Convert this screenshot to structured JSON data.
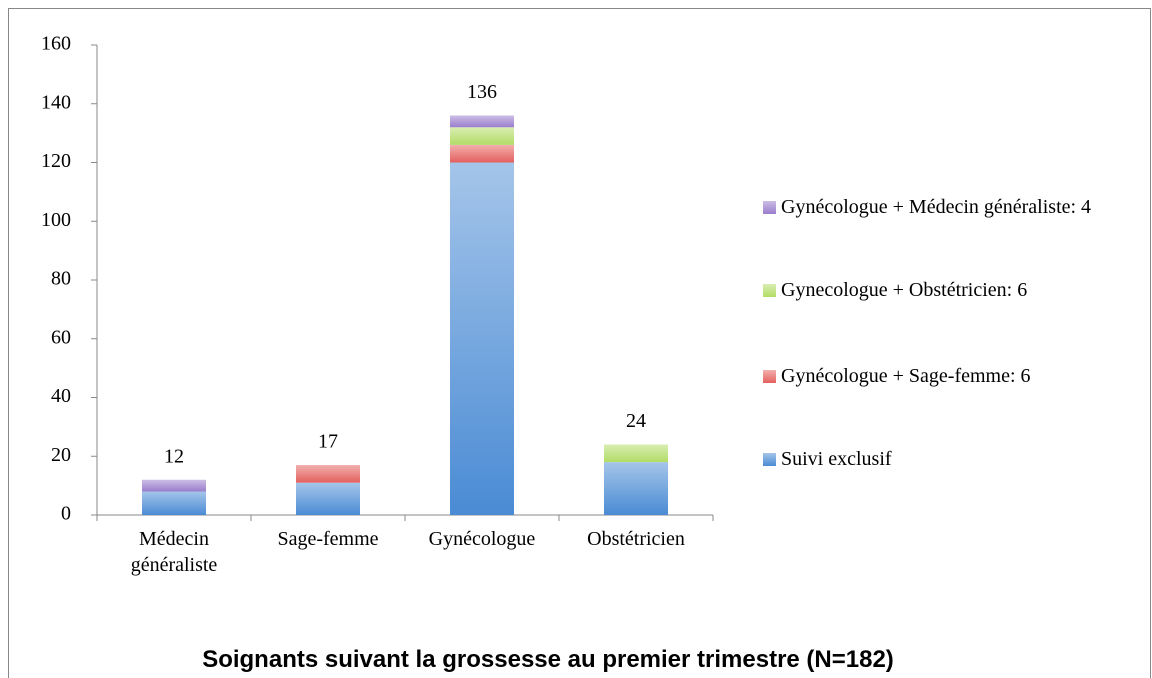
{
  "chart_data": {
    "type": "stacked_bar",
    "title": "Soignants suivant la grossesse au premier trimestre (N=182)",
    "categories": [
      "Médecin généraliste",
      "Sage-femme",
      "Gynécologue",
      "Obstétricien"
    ],
    "series": [
      {
        "name": "Suivi exclusif",
        "color": "#4a8bd4",
        "values": [
          8,
          11,
          120,
          18
        ]
      },
      {
        "name": "Gynécologue + Sage-femme: 6",
        "color": "#e4605e",
        "values": [
          0,
          6,
          6,
          0
        ]
      },
      {
        "name": "Gynecologue + Obstétricien: 6",
        "color": "#b2dc66",
        "values": [
          0,
          0,
          6,
          6
        ]
      },
      {
        "name": "Gynécologue + Médecin généraliste: 4",
        "color": "#9a7dcc",
        "values": [
          4,
          0,
          4,
          0
        ]
      }
    ],
    "totals": [
      12,
      17,
      136,
      24
    ],
    "ylim": [
      0,
      160
    ],
    "yticks": [
      0,
      20,
      40,
      60,
      80,
      100,
      120,
      140,
      160
    ],
    "legend": "right"
  }
}
